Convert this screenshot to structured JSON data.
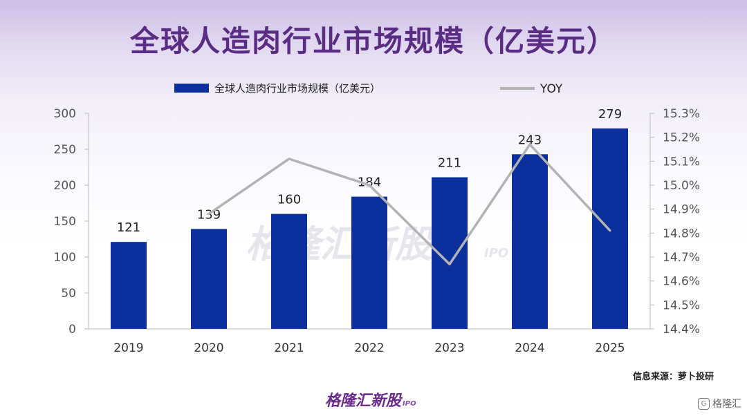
{
  "title": "全球人造肉行业市场规模（亿美元）",
  "source": "信息来源：萝卜投研",
  "watermark": {
    "text": "格隆汇新股",
    "sub": "IPO"
  },
  "brand": {
    "text": "格隆汇新股",
    "sub": "IPO"
  },
  "corner_logo": {
    "icon": "G",
    "text": "格隆汇"
  },
  "colors": {
    "bar": "#0b2f9c",
    "line": "#b3b3b3",
    "title": "#5b2c83",
    "axis": "#555555"
  },
  "chart_data": {
    "type": "bar",
    "categories": [
      "2019",
      "2020",
      "2021",
      "2022",
      "2023",
      "2024",
      "2025"
    ],
    "series": [
      {
        "name": "全球人造肉行业市场规模（亿美元）",
        "type": "bar",
        "axis": "left",
        "values": [
          121,
          139,
          160,
          184,
          211,
          243,
          279
        ],
        "labels": [
          "121",
          "139",
          "160",
          "184",
          "211",
          "243",
          "279"
        ]
      },
      {
        "name": "YOY",
        "type": "line",
        "axis": "right",
        "values": [
          null,
          14.88,
          15.11,
          15.0,
          14.67,
          15.17,
          14.81
        ]
      }
    ],
    "y_left": {
      "ylim": [
        0,
        300
      ],
      "ticks": [
        "0",
        "50",
        "100",
        "150",
        "200",
        "250",
        "300"
      ]
    },
    "y_right": {
      "ylim": [
        14.4,
        15.3
      ],
      "ticks": [
        "14.4%",
        "14.5%",
        "14.6%",
        "14.7%",
        "14.8%",
        "14.9%",
        "15.0%",
        "15.1%",
        "15.2%",
        "15.3%"
      ]
    },
    "legend": "top",
    "grid": false
  }
}
